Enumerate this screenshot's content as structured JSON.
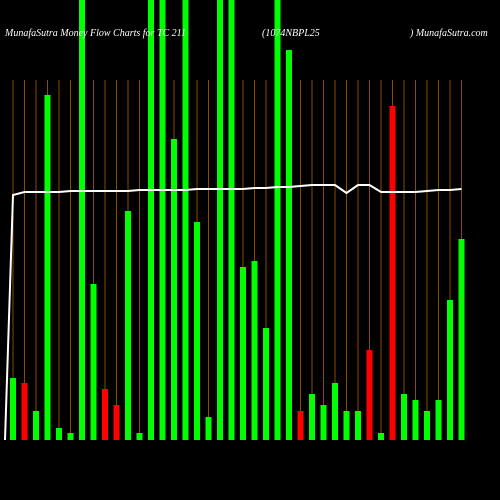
{
  "chart_data": {
    "type": "bar",
    "title": "MunafaSutra  Money Flow  Charts for TC 211",
    "subtitle": "(1074NBPL25",
    "source": ") MunafaSutra.com",
    "categories": [
      null,
      null,
      null,
      null,
      null,
      null,
      null,
      null,
      null,
      null,
      null,
      null,
      null,
      null,
      null,
      null,
      null,
      null,
      null,
      null,
      null,
      null,
      null,
      null,
      null,
      null,
      null,
      null,
      null,
      null,
      null,
      null,
      null,
      null,
      null,
      null,
      null,
      null,
      null,
      null
    ],
    "values": [
      62,
      57,
      29,
      345,
      12,
      7,
      440,
      156,
      51,
      35,
      229,
      7,
      440,
      440,
      301,
      440,
      218,
      23,
      440,
      440,
      173,
      179,
      112,
      440,
      390,
      29,
      46,
      35,
      57,
      29,
      29,
      90,
      7,
      334,
      46,
      40,
      29,
      40,
      140,
      201
    ],
    "colors": [
      "#00ff00",
      "#ff0000",
      "#00ff00",
      "#00ff00",
      "#00ff00",
      "#00ff00",
      "#00ff00",
      "#00ff00",
      "#ff0000",
      "#ff0000",
      "#00ff00",
      "#00ff00",
      "#00ff00",
      "#00ff00",
      "#00ff00",
      "#00ff00",
      "#00ff00",
      "#00ff00",
      "#00ff00",
      "#00ff00",
      "#00ff00",
      "#00ff00",
      "#00ff00",
      "#00ff00",
      "#00ff00",
      "#ff0000",
      "#00ff00",
      "#00ff00",
      "#00ff00",
      "#00ff00",
      "#00ff00",
      "#ff0000",
      "#00ff00",
      "#ff0000",
      "#00ff00",
      "#00ff00",
      "#00ff00",
      "#00ff00",
      "#00ff00",
      "#00ff00"
    ],
    "line_values": [
      245,
      248,
      248,
      248,
      248,
      249,
      249,
      249,
      249,
      249,
      249,
      250,
      250,
      250,
      250,
      250,
      251,
      251,
      251,
      251,
      251,
      252,
      252,
      253,
      253,
      254,
      255,
      255,
      255,
      247,
      255,
      255,
      248,
      248,
      248,
      248,
      249,
      250,
      250,
      251
    ],
    "line_color": "#ffffff",
    "ylim": [
      0,
      440
    ]
  }
}
